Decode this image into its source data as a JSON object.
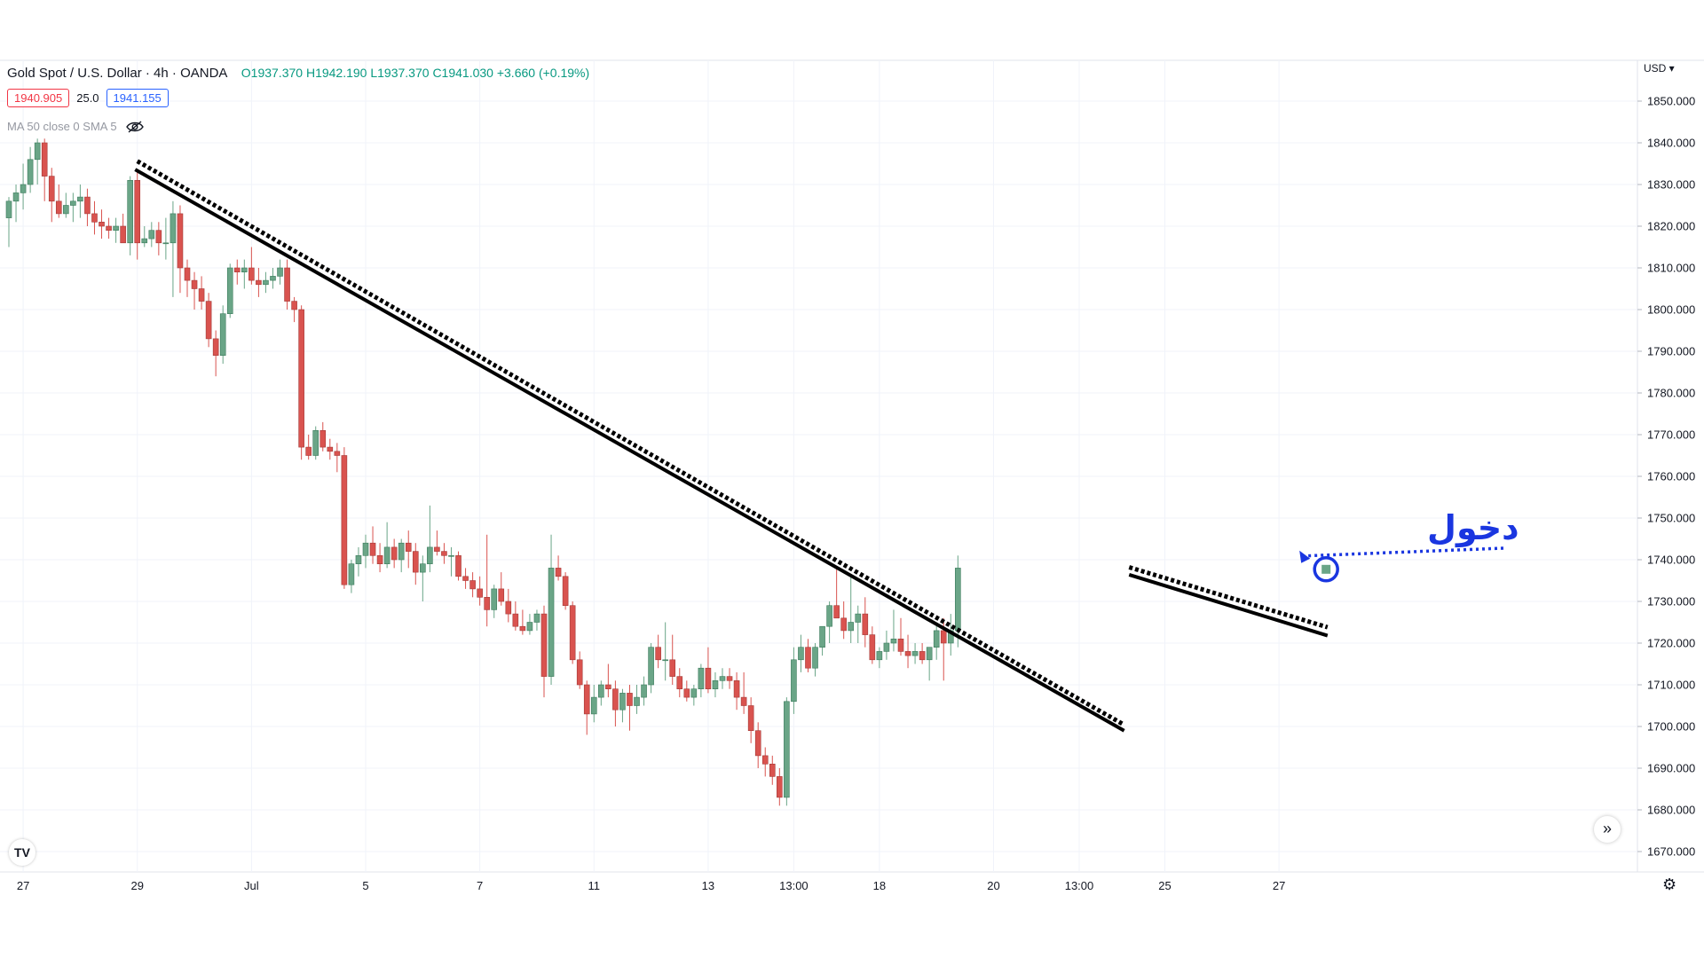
{
  "header": {
    "symbol": "Gold Spot / U.S. Dollar · 4h · OANDA",
    "ohlc": {
      "o": "O1937.370",
      "h": "H1942.190",
      "l": "L1937.370",
      "c": "C1941.030",
      "chg": "+3.660 (+0.19%)"
    },
    "bid": "1940.905",
    "spread": "25.0",
    "ask": "1941.155",
    "indicator": "MA 50 close 0 SMA 5",
    "currency": "USD"
  },
  "colors": {
    "up": "#6aa587",
    "down": "#d9534f",
    "grid": "#f0f3fa",
    "annotation": "#1a36e0"
  },
  "icons": {
    "visibility": "eye-off-icon",
    "scroll": "double-chevron-right-icon",
    "settings": "gear-icon"
  },
  "chart_data": {
    "type": "candlestick",
    "price_axis": {
      "min": 1670,
      "max": 1850,
      "ticks": [
        "1850.000",
        "1840.000",
        "1830.000",
        "1820.000",
        "1810.000",
        "1800.000",
        "1790.000",
        "1780.000",
        "1770.000",
        "1760.000",
        "1750.000",
        "1740.000",
        "1730.000",
        "1720.000",
        "1710.000",
        "1700.000",
        "1690.000",
        "1680.000",
        "1670.000"
      ]
    },
    "time_axis": [
      {
        "label": "27",
        "bar": 2
      },
      {
        "label": "29",
        "bar": 18
      },
      {
        "label": "Jul",
        "bar": 34
      },
      {
        "label": "5",
        "bar": 50
      },
      {
        "label": "7",
        "bar": 66
      },
      {
        "label": "11",
        "bar": 82
      },
      {
        "label": "13",
        "bar": 98
      },
      {
        "label": "13:00",
        "bar": 110
      },
      {
        "label": "18",
        "bar": 122
      },
      {
        "label": "20",
        "bar": 138
      },
      {
        "label": "13:00",
        "bar": 150
      },
      {
        "label": "25",
        "bar": 162
      },
      {
        "label": "27",
        "bar": 178
      }
    ],
    "bars": [
      [
        1822,
        1827,
        1815,
        1826
      ],
      [
        1826,
        1830,
        1821,
        1828
      ],
      [
        1828,
        1835,
        1824,
        1830
      ],
      [
        1830,
        1839,
        1828,
        1836
      ],
      [
        1836,
        1841,
        1830,
        1840
      ],
      [
        1840,
        1841,
        1826,
        1832
      ],
      [
        1832,
        1834,
        1821,
        1826
      ],
      [
        1826,
        1830,
        1822,
        1823
      ],
      [
        1823,
        1828,
        1822,
        1825
      ],
      [
        1825,
        1828,
        1821,
        1826
      ],
      [
        1826,
        1830,
        1822,
        1827
      ],
      [
        1827,
        1829,
        1820,
        1823
      ],
      [
        1823,
        1826,
        1818,
        1821
      ],
      [
        1821,
        1824,
        1817,
        1820
      ],
      [
        1820,
        1822,
        1817,
        1819
      ],
      [
        1819,
        1822,
        1816,
        1820
      ],
      [
        1820,
        1823,
        1816,
        1816
      ],
      [
        1816,
        1832,
        1813,
        1831
      ],
      [
        1831,
        1833,
        1812,
        1816
      ],
      [
        1816,
        1820,
        1815,
        1817
      ],
      [
        1817,
        1821,
        1815,
        1819
      ],
      [
        1819,
        1821,
        1813,
        1816
      ],
      [
        1816,
        1822,
        1812,
        1816
      ],
      [
        1816,
        1826,
        1803,
        1823
      ],
      [
        1823,
        1825,
        1804,
        1810
      ],
      [
        1810,
        1812,
        1803,
        1807
      ],
      [
        1807,
        1809,
        1800,
        1805
      ],
      [
        1805,
        1808,
        1800,
        1802
      ],
      [
        1802,
        1804,
        1791,
        1793
      ],
      [
        1793,
        1795,
        1784,
        1789
      ],
      [
        1789,
        1801,
        1787,
        1799
      ],
      [
        1799,
        1811,
        1798,
        1810
      ],
      [
        1810,
        1812,
        1806,
        1809
      ],
      [
        1809,
        1812,
        1805,
        1810
      ],
      [
        1810,
        1815,
        1806,
        1807
      ],
      [
        1807,
        1810,
        1803,
        1806
      ],
      [
        1806,
        1809,
        1804,
        1807
      ],
      [
        1807,
        1810,
        1805,
        1808
      ],
      [
        1808,
        1812,
        1806,
        1810
      ],
      [
        1810,
        1812,
        1800,
        1802
      ],
      [
        1802,
        1803,
        1797,
        1800
      ],
      [
        1800,
        1801,
        1764,
        1767
      ],
      [
        1767,
        1770,
        1764,
        1765
      ],
      [
        1765,
        1772,
        1764,
        1771
      ],
      [
        1771,
        1773,
        1766,
        1767
      ],
      [
        1767,
        1769,
        1764,
        1766
      ],
      [
        1766,
        1768,
        1761,
        1765
      ],
      [
        1765,
        1767,
        1733,
        1734
      ],
      [
        1734,
        1740,
        1732,
        1739
      ],
      [
        1739,
        1743,
        1736,
        1741
      ],
      [
        1741,
        1746,
        1738,
        1744
      ],
      [
        1744,
        1748,
        1739,
        1741
      ],
      [
        1741,
        1744,
        1737,
        1739
      ],
      [
        1739,
        1749,
        1738,
        1743
      ],
      [
        1743,
        1745,
        1738,
        1740
      ],
      [
        1740,
        1745,
        1737,
        1744
      ],
      [
        1744,
        1747,
        1738,
        1742
      ],
      [
        1742,
        1744,
        1734,
        1737
      ],
      [
        1737,
        1741,
        1730,
        1739
      ],
      [
        1739,
        1753,
        1737,
        1743
      ],
      [
        1743,
        1747,
        1741,
        1742
      ],
      [
        1742,
        1744,
        1739,
        1741
      ],
      [
        1741,
        1743,
        1736,
        1741
      ],
      [
        1741,
        1742,
        1735,
        1736
      ],
      [
        1736,
        1738,
        1733,
        1735
      ],
      [
        1735,
        1737,
        1731,
        1733
      ],
      [
        1733,
        1736,
        1729,
        1731
      ],
      [
        1731,
        1746,
        1724,
        1728
      ],
      [
        1728,
        1734,
        1726,
        1733
      ],
      [
        1733,
        1737,
        1729,
        1730
      ],
      [
        1730,
        1733,
        1725,
        1727
      ],
      [
        1727,
        1730,
        1723,
        1724
      ],
      [
        1724,
        1728,
        1722,
        1723
      ],
      [
        1723,
        1727,
        1722,
        1725
      ],
      [
        1725,
        1728,
        1723,
        1727
      ],
      [
        1727,
        1729,
        1707,
        1712
      ],
      [
        1712,
        1746,
        1710,
        1738
      ],
      [
        1738,
        1741,
        1735,
        1736
      ],
      [
        1736,
        1737,
        1728,
        1729
      ],
      [
        1729,
        1730,
        1715,
        1716
      ],
      [
        1716,
        1718,
        1709,
        1710
      ],
      [
        1710,
        1711,
        1698,
        1703
      ],
      [
        1703,
        1710,
        1701,
        1707
      ],
      [
        1707,
        1711,
        1705,
        1710
      ],
      [
        1710,
        1715,
        1707,
        1709
      ],
      [
        1709,
        1711,
        1700,
        1704
      ],
      [
        1704,
        1709,
        1701,
        1708
      ],
      [
        1708,
        1710,
        1699,
        1705
      ],
      [
        1705,
        1710,
        1703,
        1707
      ],
      [
        1707,
        1712,
        1705,
        1710
      ],
      [
        1710,
        1720,
        1708,
        1719
      ],
      [
        1719,
        1722,
        1714,
        1716
      ],
      [
        1716,
        1725,
        1711,
        1716
      ],
      [
        1716,
        1722,
        1710,
        1712
      ],
      [
        1712,
        1714,
        1707,
        1709
      ],
      [
        1709,
        1711,
        1706,
        1707
      ],
      [
        1707,
        1710,
        1705,
        1709
      ],
      [
        1709,
        1715,
        1707,
        1714
      ],
      [
        1714,
        1719,
        1708,
        1709
      ],
      [
        1709,
        1713,
        1707,
        1711
      ],
      [
        1711,
        1714,
        1709,
        1712
      ],
      [
        1712,
        1714,
        1709,
        1711
      ],
      [
        1711,
        1713,
        1704,
        1707
      ],
      [
        1707,
        1713,
        1703,
        1705
      ],
      [
        1705,
        1707,
        1696,
        1699
      ],
      [
        1699,
        1701,
        1690,
        1693
      ],
      [
        1693,
        1695,
        1688,
        1691
      ],
      [
        1691,
        1693,
        1686,
        1688
      ],
      [
        1688,
        1690,
        1681,
        1683
      ],
      [
        1683,
        1707,
        1681,
        1706
      ],
      [
        1706,
        1719,
        1703,
        1716
      ],
      [
        1716,
        1722,
        1713,
        1719
      ],
      [
        1719,
        1721,
        1713,
        1714
      ],
      [
        1714,
        1720,
        1712,
        1719
      ],
      [
        1719,
        1724,
        1717,
        1724
      ],
      [
        1724,
        1730,
        1720,
        1729
      ],
      [
        1729,
        1738,
        1726,
        1726
      ],
      [
        1726,
        1730,
        1721,
        1723
      ],
      [
        1723,
        1736,
        1720,
        1725
      ],
      [
        1725,
        1729,
        1720,
        1727
      ],
      [
        1727,
        1731,
        1719,
        1722
      ],
      [
        1722,
        1724,
        1715,
        1716
      ],
      [
        1716,
        1719,
        1714,
        1718
      ],
      [
        1718,
        1723,
        1716,
        1720
      ],
      [
        1720,
        1728,
        1718,
        1721
      ],
      [
        1721,
        1726,
        1717,
        1718
      ],
      [
        1718,
        1722,
        1714,
        1717
      ],
      [
        1717,
        1720,
        1715,
        1718
      ],
      [
        1718,
        1720,
        1715,
        1716
      ],
      [
        1716,
        1719,
        1711,
        1719
      ],
      [
        1719,
        1725,
        1716,
        1723
      ],
      [
        1723,
        1726,
        1711,
        1720
      ],
      [
        1720,
        1727,
        1717,
        1723
      ],
      [
        1723,
        1741,
        1719,
        1738
      ]
    ],
    "trendlines": [
      {
        "style": "solid",
        "from": {
          "bar": 17.7,
          "price": 1833.6
        },
        "to": {
          "bar": 156.3,
          "price": 1699.0
        }
      },
      {
        "style": "dotted",
        "from": {
          "bar": 18.0,
          "price": 1835.6
        },
        "to": {
          "bar": 156.3,
          "price": 1700.4
        }
      },
      {
        "style": "solid",
        "from": {
          "bar": 157.0,
          "price": 1736.4
        },
        "to": {
          "bar": 184.8,
          "price": 1721.8
        }
      },
      {
        "style": "dotted",
        "from": {
          "bar": 157.0,
          "price": 1738.2
        },
        "to": {
          "bar": 184.8,
          "price": 1723.8
        }
      }
    ],
    "annotation": {
      "text": "دخول",
      "target": {
        "bar": 184.6,
        "price": 1737.7
      }
    }
  }
}
